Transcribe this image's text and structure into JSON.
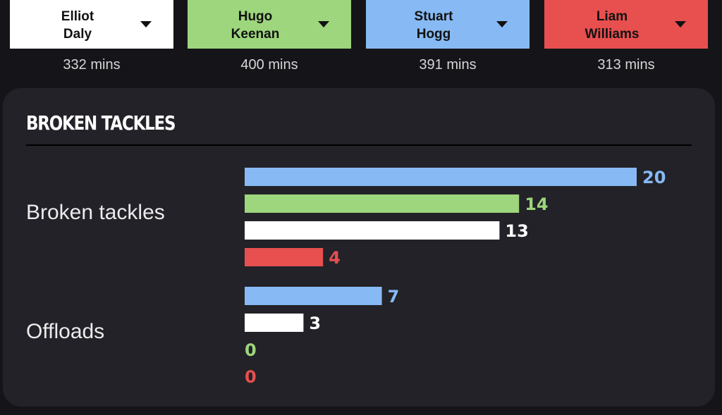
{
  "players": [
    {
      "first": "Elliot",
      "last": "Daly",
      "mins": "332 mins",
      "color": "#ffffff"
    },
    {
      "first": "Hugo",
      "last": "Keenan",
      "mins": "400 mins",
      "color": "#9dd67c"
    },
    {
      "first": "Stuart",
      "last": "Hogg",
      "mins": "391 mins",
      "color": "#87baf4"
    },
    {
      "first": "Liam",
      "last": "Williams",
      "mins": "313 mins",
      "color": "#e84f4f"
    }
  ],
  "section": {
    "title": "BROKEN TACKLES"
  },
  "chart_data": {
    "type": "bar",
    "orientation": "horizontal",
    "categories": [
      "Broken tackles",
      "Offloads"
    ],
    "bar_order": [
      "Stuart Hogg",
      "Hugo Keenan",
      "Elliot Daly",
      "Liam Williams"
    ],
    "series": [
      {
        "name": "Stuart Hogg",
        "values": [
          20,
          7
        ],
        "color": "#87baf4"
      },
      {
        "name": "Hugo Keenan",
        "values": [
          14,
          0
        ],
        "color": "#9dd67c"
      },
      {
        "name": "Elliot Daly",
        "values": [
          13,
          3
        ],
        "color": "#ffffff"
      },
      {
        "name": "Liam Williams",
        "values": [
          4,
          0
        ],
        "color": "#e84f4f"
      }
    ],
    "groups": [
      {
        "label": "Broken tackles",
        "bars": [
          {
            "player": "Stuart Hogg",
            "value": 20,
            "label": "20",
            "color": "#87baf4"
          },
          {
            "player": "Hugo Keenan",
            "value": 14,
            "label": "14",
            "color": "#9dd67c"
          },
          {
            "player": "Elliot Daly",
            "value": 13,
            "label": "13",
            "color": "#ffffff"
          },
          {
            "player": "Liam Williams",
            "value": 4,
            "label": "4",
            "color": "#e84f4f"
          }
        ]
      },
      {
        "label": "Offloads",
        "bars": [
          {
            "player": "Stuart Hogg",
            "value": 7,
            "label": "7",
            "color": "#87baf4"
          },
          {
            "player": "Elliot Daly",
            "value": 3,
            "label": "3",
            "color": "#ffffff"
          },
          {
            "player": "Hugo Keenan",
            "value": 0,
            "label": "0",
            "color": "#9dd67c"
          },
          {
            "player": "Liam Williams",
            "value": 0,
            "label": "0",
            "color": "#e84f4f"
          }
        ]
      }
    ],
    "xlim": [
      0,
      20
    ],
    "grid": false
  }
}
